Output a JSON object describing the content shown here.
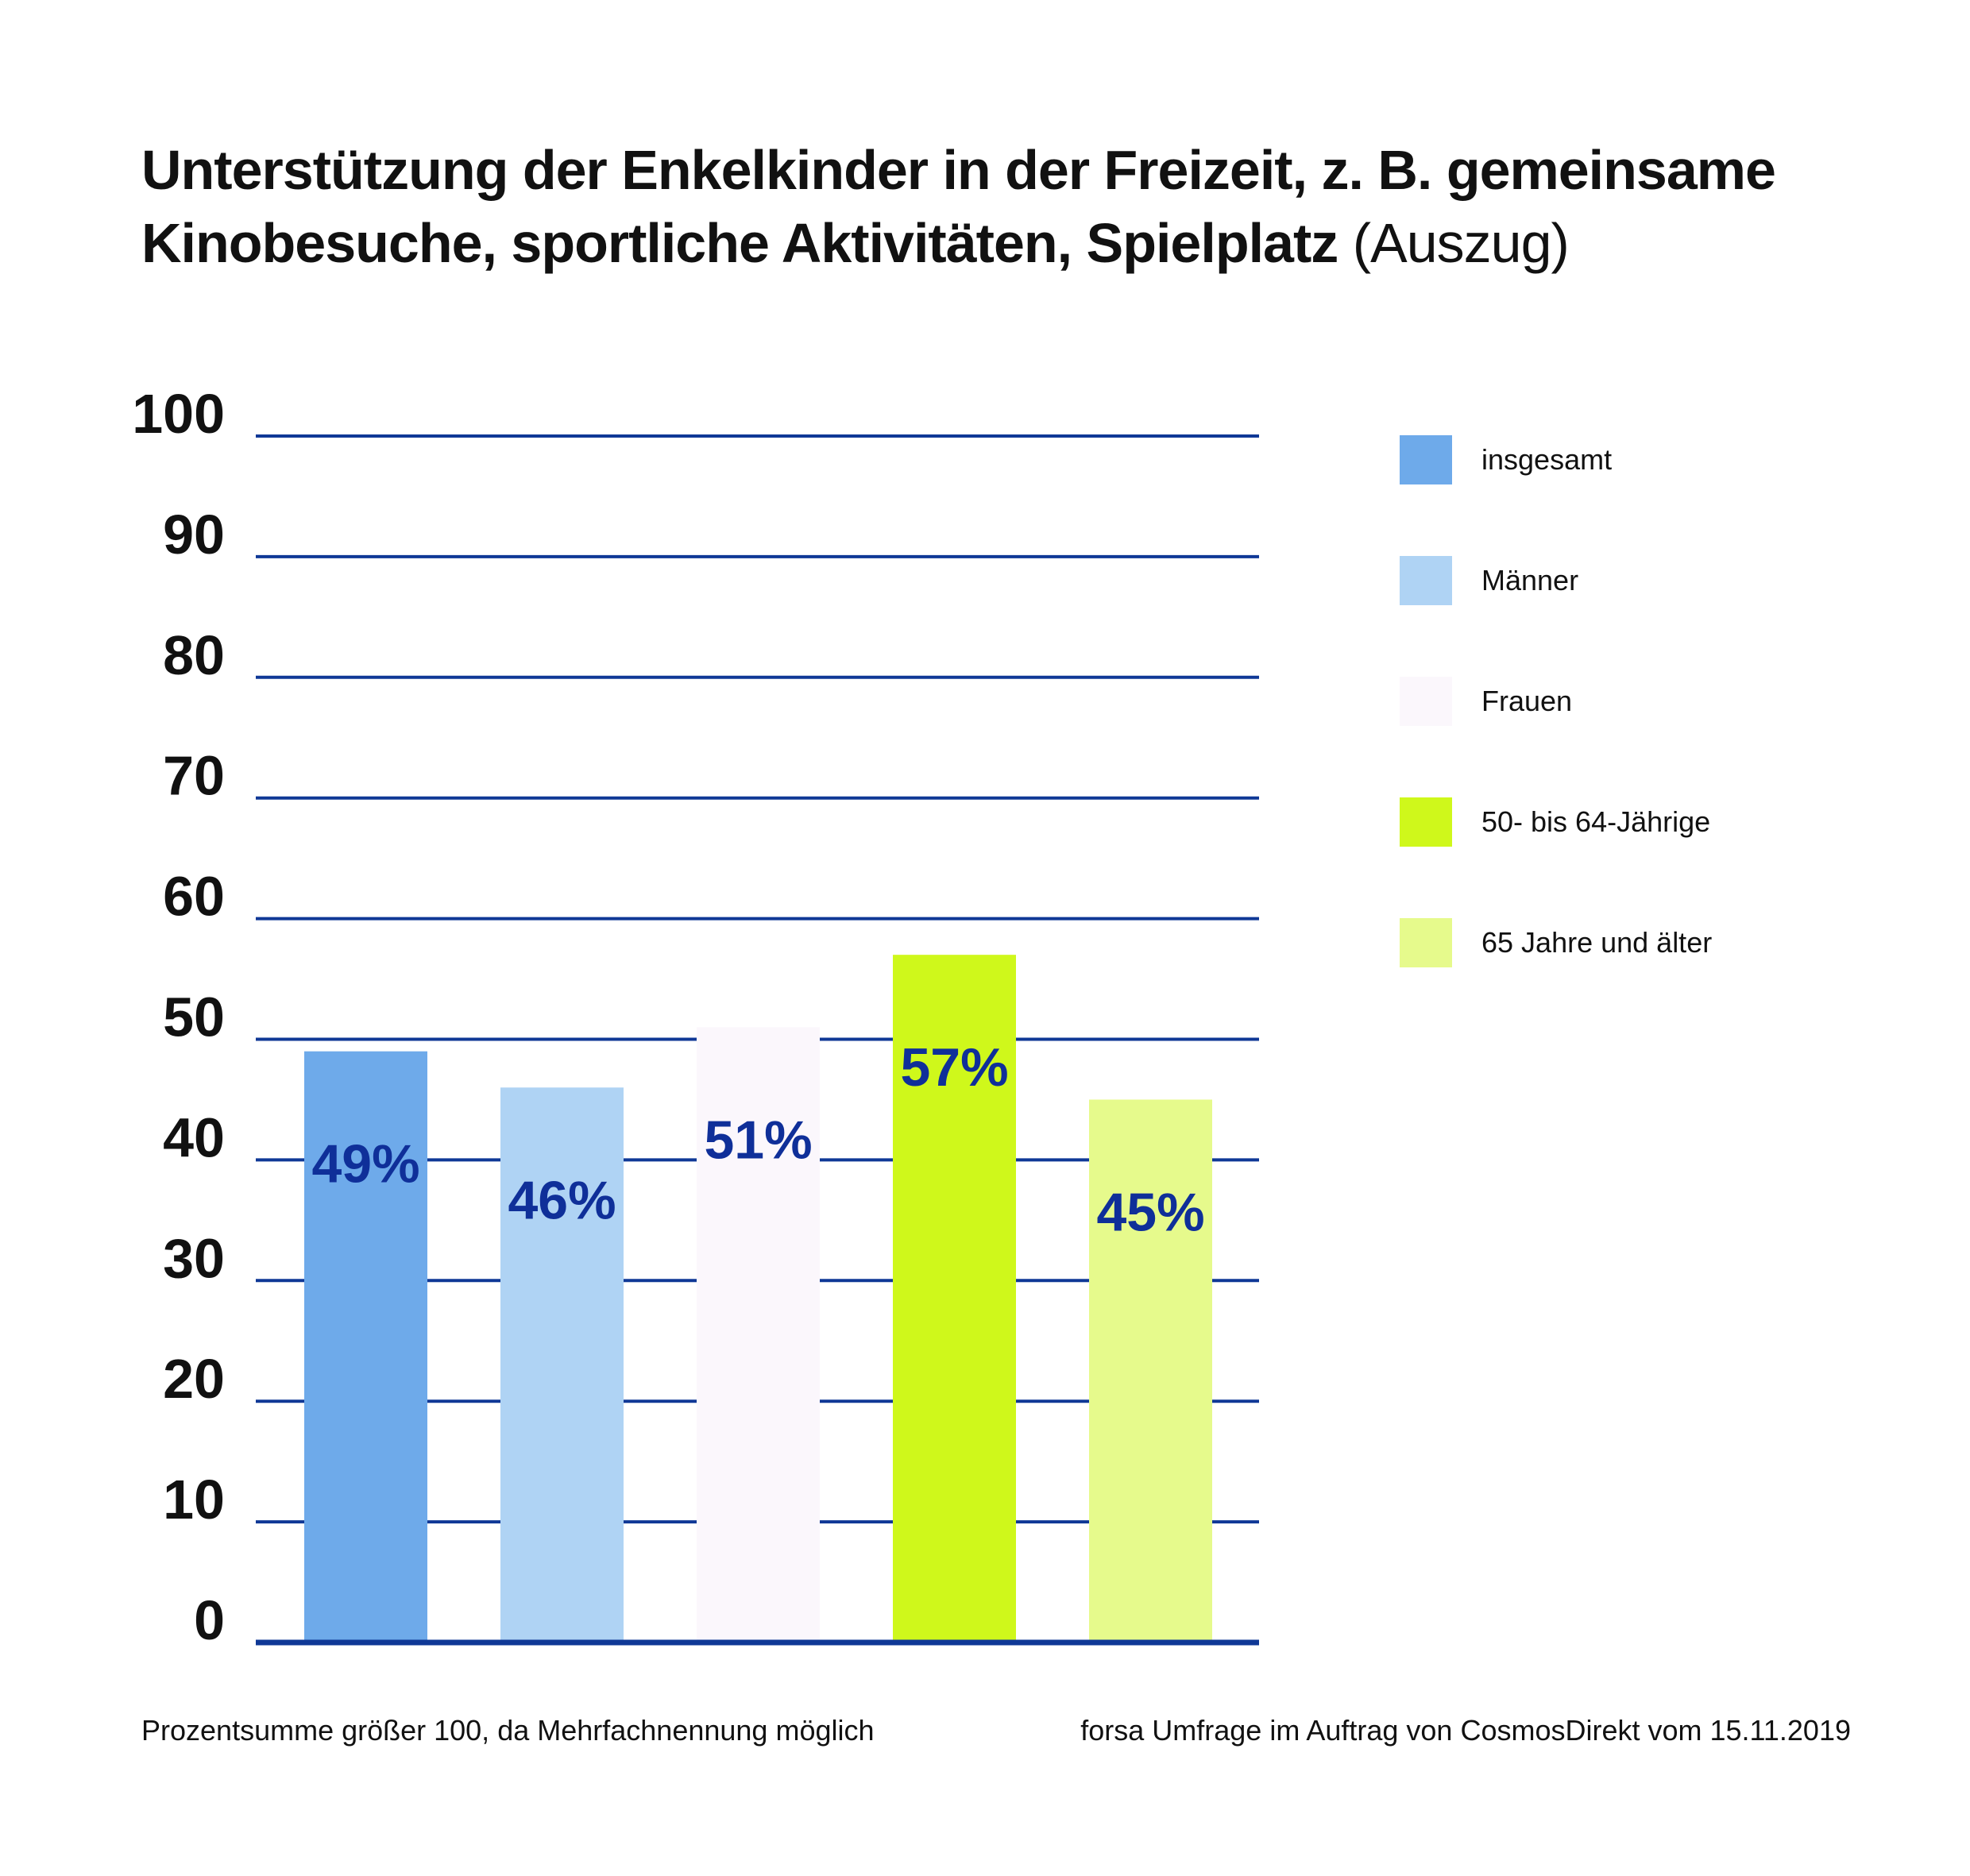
{
  "title": {
    "main_line1": "Unterstützung der Enkelkinder in der Freizeit, z. B. gemeinsame",
    "main_line2": "Kinobesuche, sportliche Aktivitäten, Spielplatz",
    "suffix": "(Auszug)"
  },
  "chart_data": {
    "type": "bar",
    "categories": [
      "insgesamt",
      "Männer",
      "Frauen",
      "50- bis 64-Jährige",
      "65 Jahre und älter"
    ],
    "values": [
      49,
      46,
      51,
      57,
      45
    ],
    "value_labels": [
      "49%",
      "46%",
      "51%",
      "57%",
      "45%"
    ],
    "colors": [
      "#6eaaea",
      "#afd3f4",
      "#fbf7fc",
      "#cff81b",
      "#e6fa8c"
    ],
    "ylim": [
      0,
      100
    ],
    "yticks": [
      "0",
      "10",
      "20",
      "30",
      "40",
      "50",
      "60",
      "70",
      "80",
      "90",
      "100"
    ],
    "grid": true,
    "grid_color": "#0f3896",
    "label_color": "#0f2f99",
    "legend_position": "right",
    "xlabel": "",
    "ylabel": ""
  },
  "legend": [
    {
      "label": "insgesamt",
      "color": "#6eaaea"
    },
    {
      "label": "Männer",
      "color": "#afd3f4"
    },
    {
      "label": "Frauen",
      "color": "#fbf7fc"
    },
    {
      "label": "50- bis 64-Jährige",
      "color": "#cff81b"
    },
    {
      "label": "65 Jahre und älter",
      "color": "#e6fa8c"
    }
  ],
  "footnote": {
    "left": "Prozentsumme größer 100, da Mehrfachnennung möglich",
    "right": "forsa Umfrage im Auftrag von CosmosDirekt vom 15.11.2019"
  }
}
